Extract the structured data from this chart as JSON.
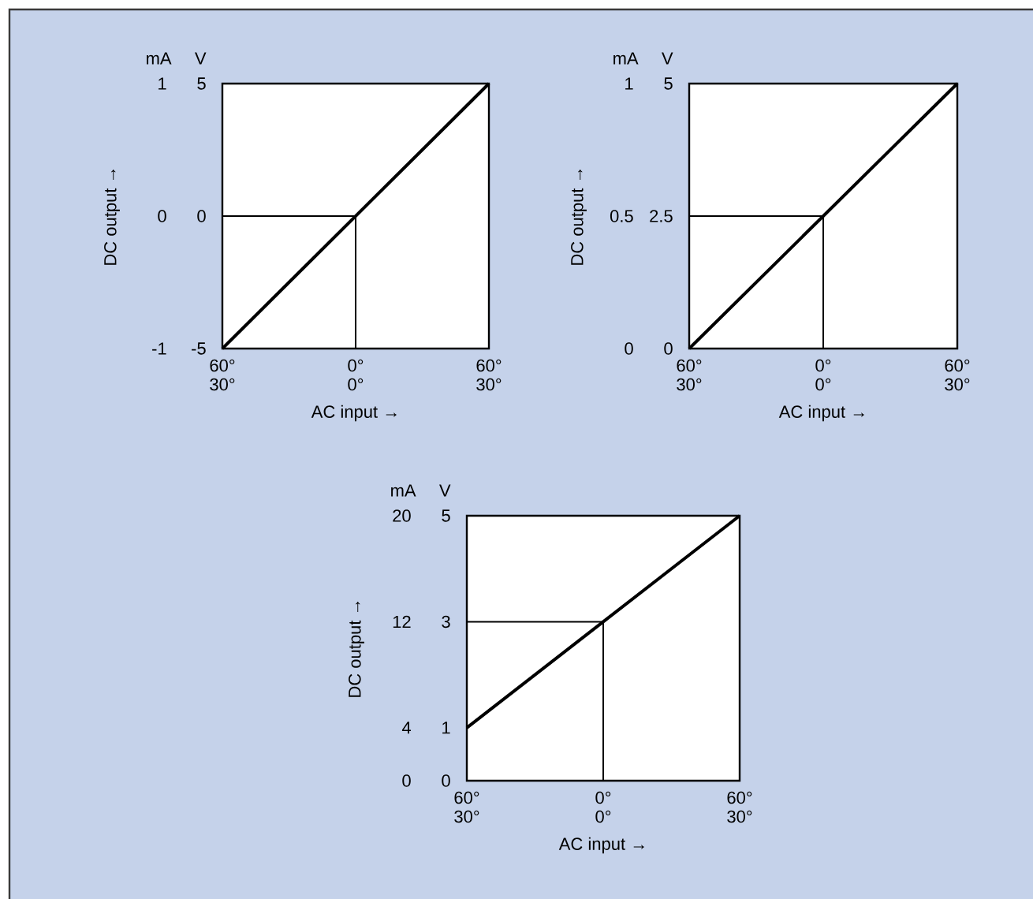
{
  "chart_data": [
    {
      "type": "line",
      "xlabel": "AC input →",
      "ylabel": "DC output →",
      "annotations": [
        "mA",
        "V"
      ],
      "xlim": [
        -60,
        60
      ],
      "xticks": [
        {
          "value": -60,
          "label": "60°"
        },
        {
          "value": 0,
          "label": "0°"
        },
        {
          "value": 60,
          "label": "60°"
        }
      ],
      "x2lim": [
        -30,
        30
      ],
      "x2ticks": [
        {
          "value": -30,
          "label": "30°"
        },
        {
          "value": 0,
          "label": "0°"
        },
        {
          "value": 30,
          "label": "30°"
        }
      ],
      "ylim": [
        -1,
        1
      ],
      "yticks": [
        -1,
        0,
        1
      ],
      "y2lim": [
        -5,
        5
      ],
      "y2ticks": [
        -5,
        0,
        5
      ],
      "series": [
        {
          "axis": "y2",
          "x": [
            -60,
            0,
            60
          ],
          "values": [
            -5,
            0,
            5
          ],
          "color": "#000000"
        },
        {
          "axis": "y2",
          "x": [
            -60,
            0,
            0
          ],
          "values": [
            0,
            0,
            -5
          ],
          "color": "#000000"
        }
      ]
    },
    {
      "type": "line",
      "xlabel": "AC input →",
      "ylabel": "DC output →",
      "annotations": [
        "mA",
        "V"
      ],
      "xlim": [
        -60,
        60
      ],
      "xticks": [
        {
          "value": -60,
          "label": "60°"
        },
        {
          "value": 0,
          "label": "0°"
        },
        {
          "value": 60,
          "label": "60°"
        }
      ],
      "x2lim": [
        -30,
        30
      ],
      "x2ticks": [
        {
          "value": -30,
          "label": "30°"
        },
        {
          "value": 0,
          "label": "0°"
        },
        {
          "value": 30,
          "label": "30°"
        }
      ],
      "ylim": [
        0,
        1
      ],
      "yticks": [
        0,
        0.5,
        1
      ],
      "y2lim": [
        0,
        5
      ],
      "y2ticks": [
        0,
        2.5,
        5
      ],
      "series": [
        {
          "axis": "y2",
          "x": [
            -60,
            0,
            60
          ],
          "values": [
            0,
            2.5,
            5
          ],
          "color": "#000000"
        },
        {
          "axis": "y2",
          "x": [
            -60,
            0,
            0
          ],
          "values": [
            2.5,
            2.5,
            0
          ],
          "color": "#000000"
        }
      ]
    },
    {
      "type": "line",
      "xlabel": "AC input →",
      "ylabel": "DC output →",
      "annotations": [
        "mA",
        "V"
      ],
      "xlim": [
        -60,
        60
      ],
      "xticks": [
        {
          "value": -60,
          "label": "60°"
        },
        {
          "value": 0,
          "label": "0°"
        },
        {
          "value": 60,
          "label": "60°"
        }
      ],
      "x2lim": [
        -30,
        30
      ],
      "x2ticks": [
        {
          "value": -30,
          "label": "30°"
        },
        {
          "value": 0,
          "label": "0°"
        },
        {
          "value": 30,
          "label": "30°"
        }
      ],
      "ylim": [
        0,
        20
      ],
      "yticks": [
        0,
        4,
        12,
        20
      ],
      "y2lim": [
        0,
        5
      ],
      "y2ticks": [
        0,
        1,
        3,
        5
      ],
      "series": [
        {
          "axis": "y2",
          "x": [
            -60,
            0,
            60
          ],
          "values": [
            1,
            3,
            5
          ],
          "color": "#000000"
        },
        {
          "axis": "y2",
          "x": [
            -60,
            0,
            0
          ],
          "values": [
            3,
            3,
            0
          ],
          "color": "#000000"
        }
      ]
    }
  ]
}
